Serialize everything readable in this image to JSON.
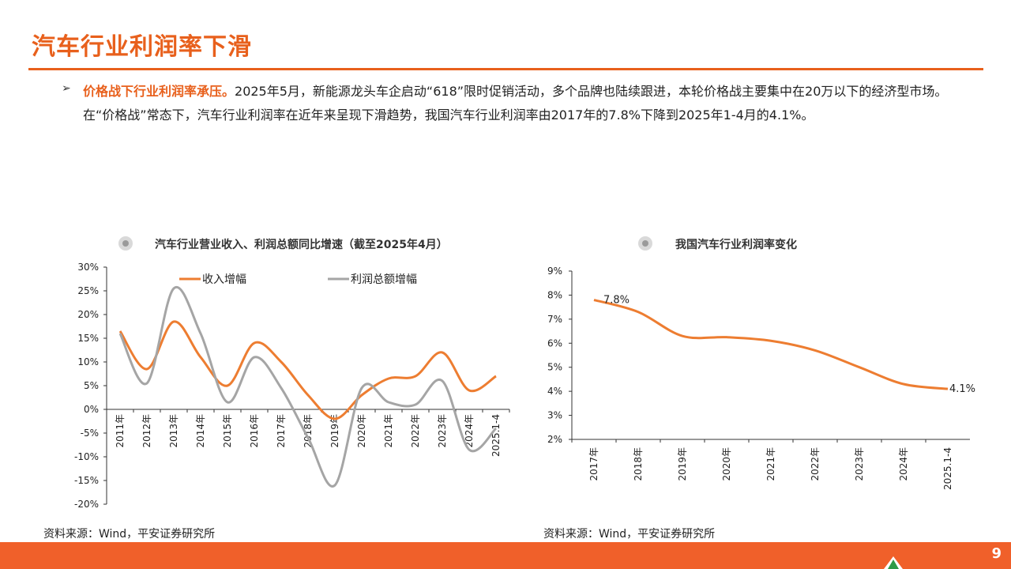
{
  "title": "汽车行业利润率下滑",
  "paragraph": {
    "highlight": "价格战下行业利润率承压。",
    "text": "2025年5月，新能源龙头车企启动“618”限时促销活动，多个品牌也陆续跟进，本轮价格战主要集中在20万以下的经济型市场。在“价格战”常态下，汽车行业利润率在近年来呈现下滑趋势，我国汽车行业利润率由2017年的7.8%下降到2025年1-4月的4.1%。"
  },
  "left_chart": {
    "title": "汽车行业营业收入、利润总额同比增速（截至2025年4月）",
    "source": "资料来源：Wind，平安证券研究所"
  },
  "right_chart": {
    "title": "我国汽车行业利润率变化",
    "source": "资料来源：Wind，平安证券研究所"
  },
  "page_number": "9",
  "colors": {
    "accent": "#e8601c",
    "series_revenue": "#ed7d31",
    "series_profit": "#a5a5a5"
  },
  "chart_data": [
    {
      "type": "line",
      "categories": [
        "2011年",
        "2012年",
        "2013年",
        "2014年",
        "2015年",
        "2016年",
        "2017年",
        "2018年",
        "2019年",
        "2020年",
        "2021年",
        "2022年",
        "2023年",
        "2024年",
        "2025.1-4"
      ],
      "series": [
        {
          "name": "收入增幅",
          "values": [
            16.5,
            8.5,
            18.5,
            11,
            5,
            14,
            10,
            3,
            -2,
            3,
            6.5,
            7,
            12,
            4,
            7
          ]
        },
        {
          "name": "利润总额增幅",
          "values": [
            16,
            5.5,
            25.5,
            16,
            1.5,
            11,
            4.5,
            -6,
            -16,
            4.5,
            1.5,
            1,
            6,
            -8.5,
            -4
          ]
        }
      ],
      "ylim": [
        -20,
        30
      ],
      "yticks": [
        "30%",
        "25%",
        "20%",
        "15%",
        "10%",
        "5%",
        "0%",
        "-5%",
        "-10%",
        "-15%",
        "-20%"
      ],
      "legend": "top"
    },
    {
      "type": "line",
      "categories": [
        "2017年",
        "2018年",
        "2019年",
        "2020年",
        "2021年",
        "2022年",
        "2023年",
        "2024年",
        "2025.1-4"
      ],
      "series": [
        {
          "values": [
            7.8,
            7.3,
            6.3,
            6.25,
            6.1,
            5.7,
            5.0,
            4.3,
            4.1
          ]
        }
      ],
      "data_labels": [
        "7.8%",
        "4.1%"
      ],
      "ylim": [
        2,
        9
      ],
      "yticks": [
        "9%",
        "8%",
        "7%",
        "6%",
        "5%",
        "4%",
        "3%",
        "2%"
      ]
    }
  ]
}
